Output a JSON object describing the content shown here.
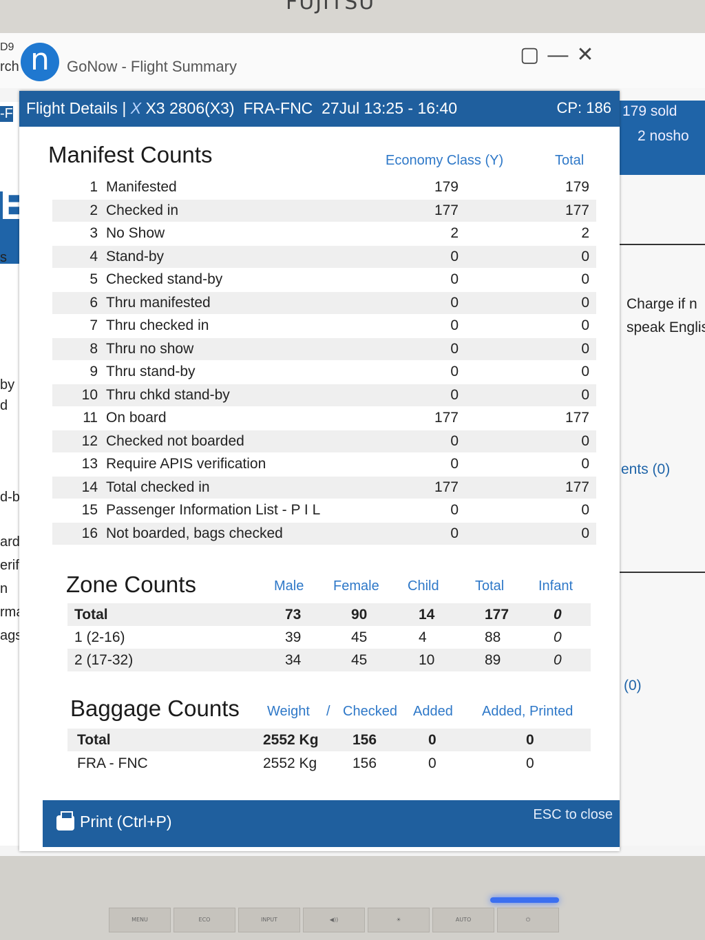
{
  "monitor": {
    "brand": "FUJITSU",
    "buttons": [
      "MENU",
      "ECO",
      "INPUT",
      "◀))",
      "☀",
      "AUTO",
      "⏻"
    ]
  },
  "app": {
    "window_frag_top": "D9",
    "window_frag_left": "rch",
    "logo_letter": "n",
    "title": "GoNow - Flight Summary",
    "controls": [
      "▢",
      "—",
      "✕"
    ]
  },
  "background_left": {
    "lines": [
      "-F",
      "E",
      "s",
      "by",
      "d",
      "d-by",
      "arde",
      "erific",
      "n",
      "rmat",
      "ags c"
    ]
  },
  "background_right": {
    "sold": "179 sold",
    "noshow": "2 nosho",
    "charge": "Charge if n",
    "speak": "speak Englis",
    "ents": "ents (0)",
    "zero": "(0)"
  },
  "dialog": {
    "header": {
      "prefix": "Flight Details |",
      "airline_code": "X",
      "flight": "X3 2806(X3)",
      "route": "FRA-FNC",
      "datetime": "27Jul  13:25 - 16:40",
      "cp": "CP: 186"
    },
    "manifest": {
      "title": "Manifest Counts",
      "col_class": "Economy Class (Y)",
      "col_total": "Total",
      "rows": [
        {
          "num": "1",
          "label": "Manifested",
          "economy": "179",
          "total": "179"
        },
        {
          "num": "2",
          "label": "Checked in",
          "economy": "177",
          "total": "177"
        },
        {
          "num": "3",
          "label": "No Show",
          "economy": "2",
          "total": "2"
        },
        {
          "num": "4",
          "label": "Stand-by",
          "economy": "0",
          "total": "0"
        },
        {
          "num": "5",
          "label": "Checked stand-by",
          "economy": "0",
          "total": "0"
        },
        {
          "num": "6",
          "label": "Thru manifested",
          "economy": "0",
          "total": "0"
        },
        {
          "num": "7",
          "label": "Thru checked in",
          "economy": "0",
          "total": "0"
        },
        {
          "num": "8",
          "label": "Thru no show",
          "economy": "0",
          "total": "0"
        },
        {
          "num": "9",
          "label": "Thru stand-by",
          "economy": "0",
          "total": "0"
        },
        {
          "num": "10",
          "label": "Thru chkd stand-by",
          "economy": "0",
          "total": "0"
        },
        {
          "num": "11",
          "label": "On board",
          "economy": "177",
          "total": "177"
        },
        {
          "num": "12",
          "label": "Checked not boarded",
          "economy": "0",
          "total": "0"
        },
        {
          "num": "13",
          "label": "Require APIS verification",
          "economy": "0",
          "total": "0"
        },
        {
          "num": "14",
          "label": "Total checked in",
          "economy": "177",
          "total": "177"
        },
        {
          "num": "15",
          "label": "Passenger Information List - P I L",
          "economy": "0",
          "total": "0"
        },
        {
          "num": "16",
          "label": "Not boarded, bags checked",
          "economy": "0",
          "total": "0"
        }
      ]
    },
    "zone": {
      "title": "Zone Counts",
      "headers": [
        "Male",
        "Female",
        "Child",
        "Total",
        "Infant"
      ],
      "rows": [
        {
          "label": "Total",
          "male": "73",
          "female": "90",
          "child": "14",
          "total": "177",
          "infant": "0"
        },
        {
          "label": "1 (2-16)",
          "male": "39",
          "female": "45",
          "child": "4",
          "total": "88",
          "infant": "0"
        },
        {
          "label": "2 (17-32)",
          "male": "34",
          "female": "45",
          "child": "10",
          "total": "89",
          "infant": "0"
        }
      ]
    },
    "baggage": {
      "title": "Baggage Counts",
      "headers": [
        "Weight",
        "/",
        "Checked",
        "Added",
        "Added, Printed"
      ],
      "rows": [
        {
          "label": "Total",
          "weight": "2552 Kg",
          "checked": "156",
          "added": "0",
          "added_printed": "0"
        },
        {
          "label": "FRA - FNC",
          "weight": "2552 Kg",
          "checked": "156",
          "added": "0",
          "added_printed": "0"
        }
      ]
    },
    "footer": {
      "print_label": "Print (Ctrl+P)",
      "esc_label": "ESC to close"
    }
  }
}
